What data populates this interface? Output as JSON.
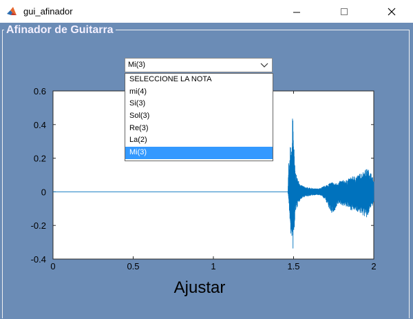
{
  "window": {
    "title": "gui_afinador",
    "app_icon": "matlab-icon",
    "controls": [
      "minimize-icon",
      "maximize-icon",
      "close-icon"
    ]
  },
  "panel": {
    "title": "Afinador de Guitarra",
    "background": "#6b8cb6"
  },
  "note_selector": {
    "value": "Mi(3)",
    "expanded": true,
    "options": [
      "SELECCIONE LA NOTA",
      "mi(4)",
      "Si(3)",
      "Sol(3)",
      "Re(3)",
      "La(2)",
      "Mi(3)"
    ],
    "selected_index": 6,
    "highlight_color": "#3399ff"
  },
  "chart_data": {
    "type": "line",
    "title": "",
    "xlabel": "Ajustar",
    "ylabel": "",
    "xlim": [
      0,
      2
    ],
    "ylim": [
      -0.4,
      0.6
    ],
    "xticks": [
      "0",
      "0.5",
      "1",
      "1.5",
      "2"
    ],
    "yticks": [
      "-0.4",
      "-0.2",
      "0",
      "0.2",
      "0.4",
      "0.6"
    ],
    "grid": false,
    "line_color": "#0072bd",
    "series": [
      {
        "x": [
          0,
          1.465,
          1.47,
          1.475,
          1.48,
          1.485,
          1.49,
          1.495,
          1.5,
          1.505,
          1.51,
          1.52,
          1.53,
          1.54,
          1.55,
          1.57,
          1.6,
          1.63,
          1.66,
          1.68,
          1.7,
          1.72,
          1.74,
          1.76,
          1.78,
          1.8,
          1.83,
          1.86,
          1.9,
          1.93,
          1.96,
          1.98,
          2.0
        ],
        "upper": [
          0.005,
          0.005,
          0.2,
          0.13,
          0.3,
          0.22,
          0.27,
          0.53,
          0.36,
          0.2,
          0.13,
          0.09,
          0.07,
          0.05,
          0.04,
          0.03,
          0.025,
          0.02,
          0.02,
          0.03,
          0.04,
          0.05,
          0.06,
          0.05,
          0.06,
          0.07,
          0.07,
          0.09,
          0.1,
          0.12,
          0.14,
          0.12,
          0.07
        ],
        "lower": [
          -0.005,
          -0.005,
          -0.05,
          -0.15,
          -0.2,
          -0.33,
          -0.27,
          -0.37,
          -0.3,
          -0.25,
          -0.12,
          -0.1,
          -0.07,
          -0.05,
          -0.04,
          -0.03,
          -0.025,
          -0.02,
          -0.02,
          -0.03,
          -0.05,
          -0.1,
          -0.13,
          -0.12,
          -0.07,
          -0.08,
          -0.09,
          -0.11,
          -0.12,
          -0.14,
          -0.16,
          -0.1,
          -0.07
        ]
      }
    ]
  }
}
